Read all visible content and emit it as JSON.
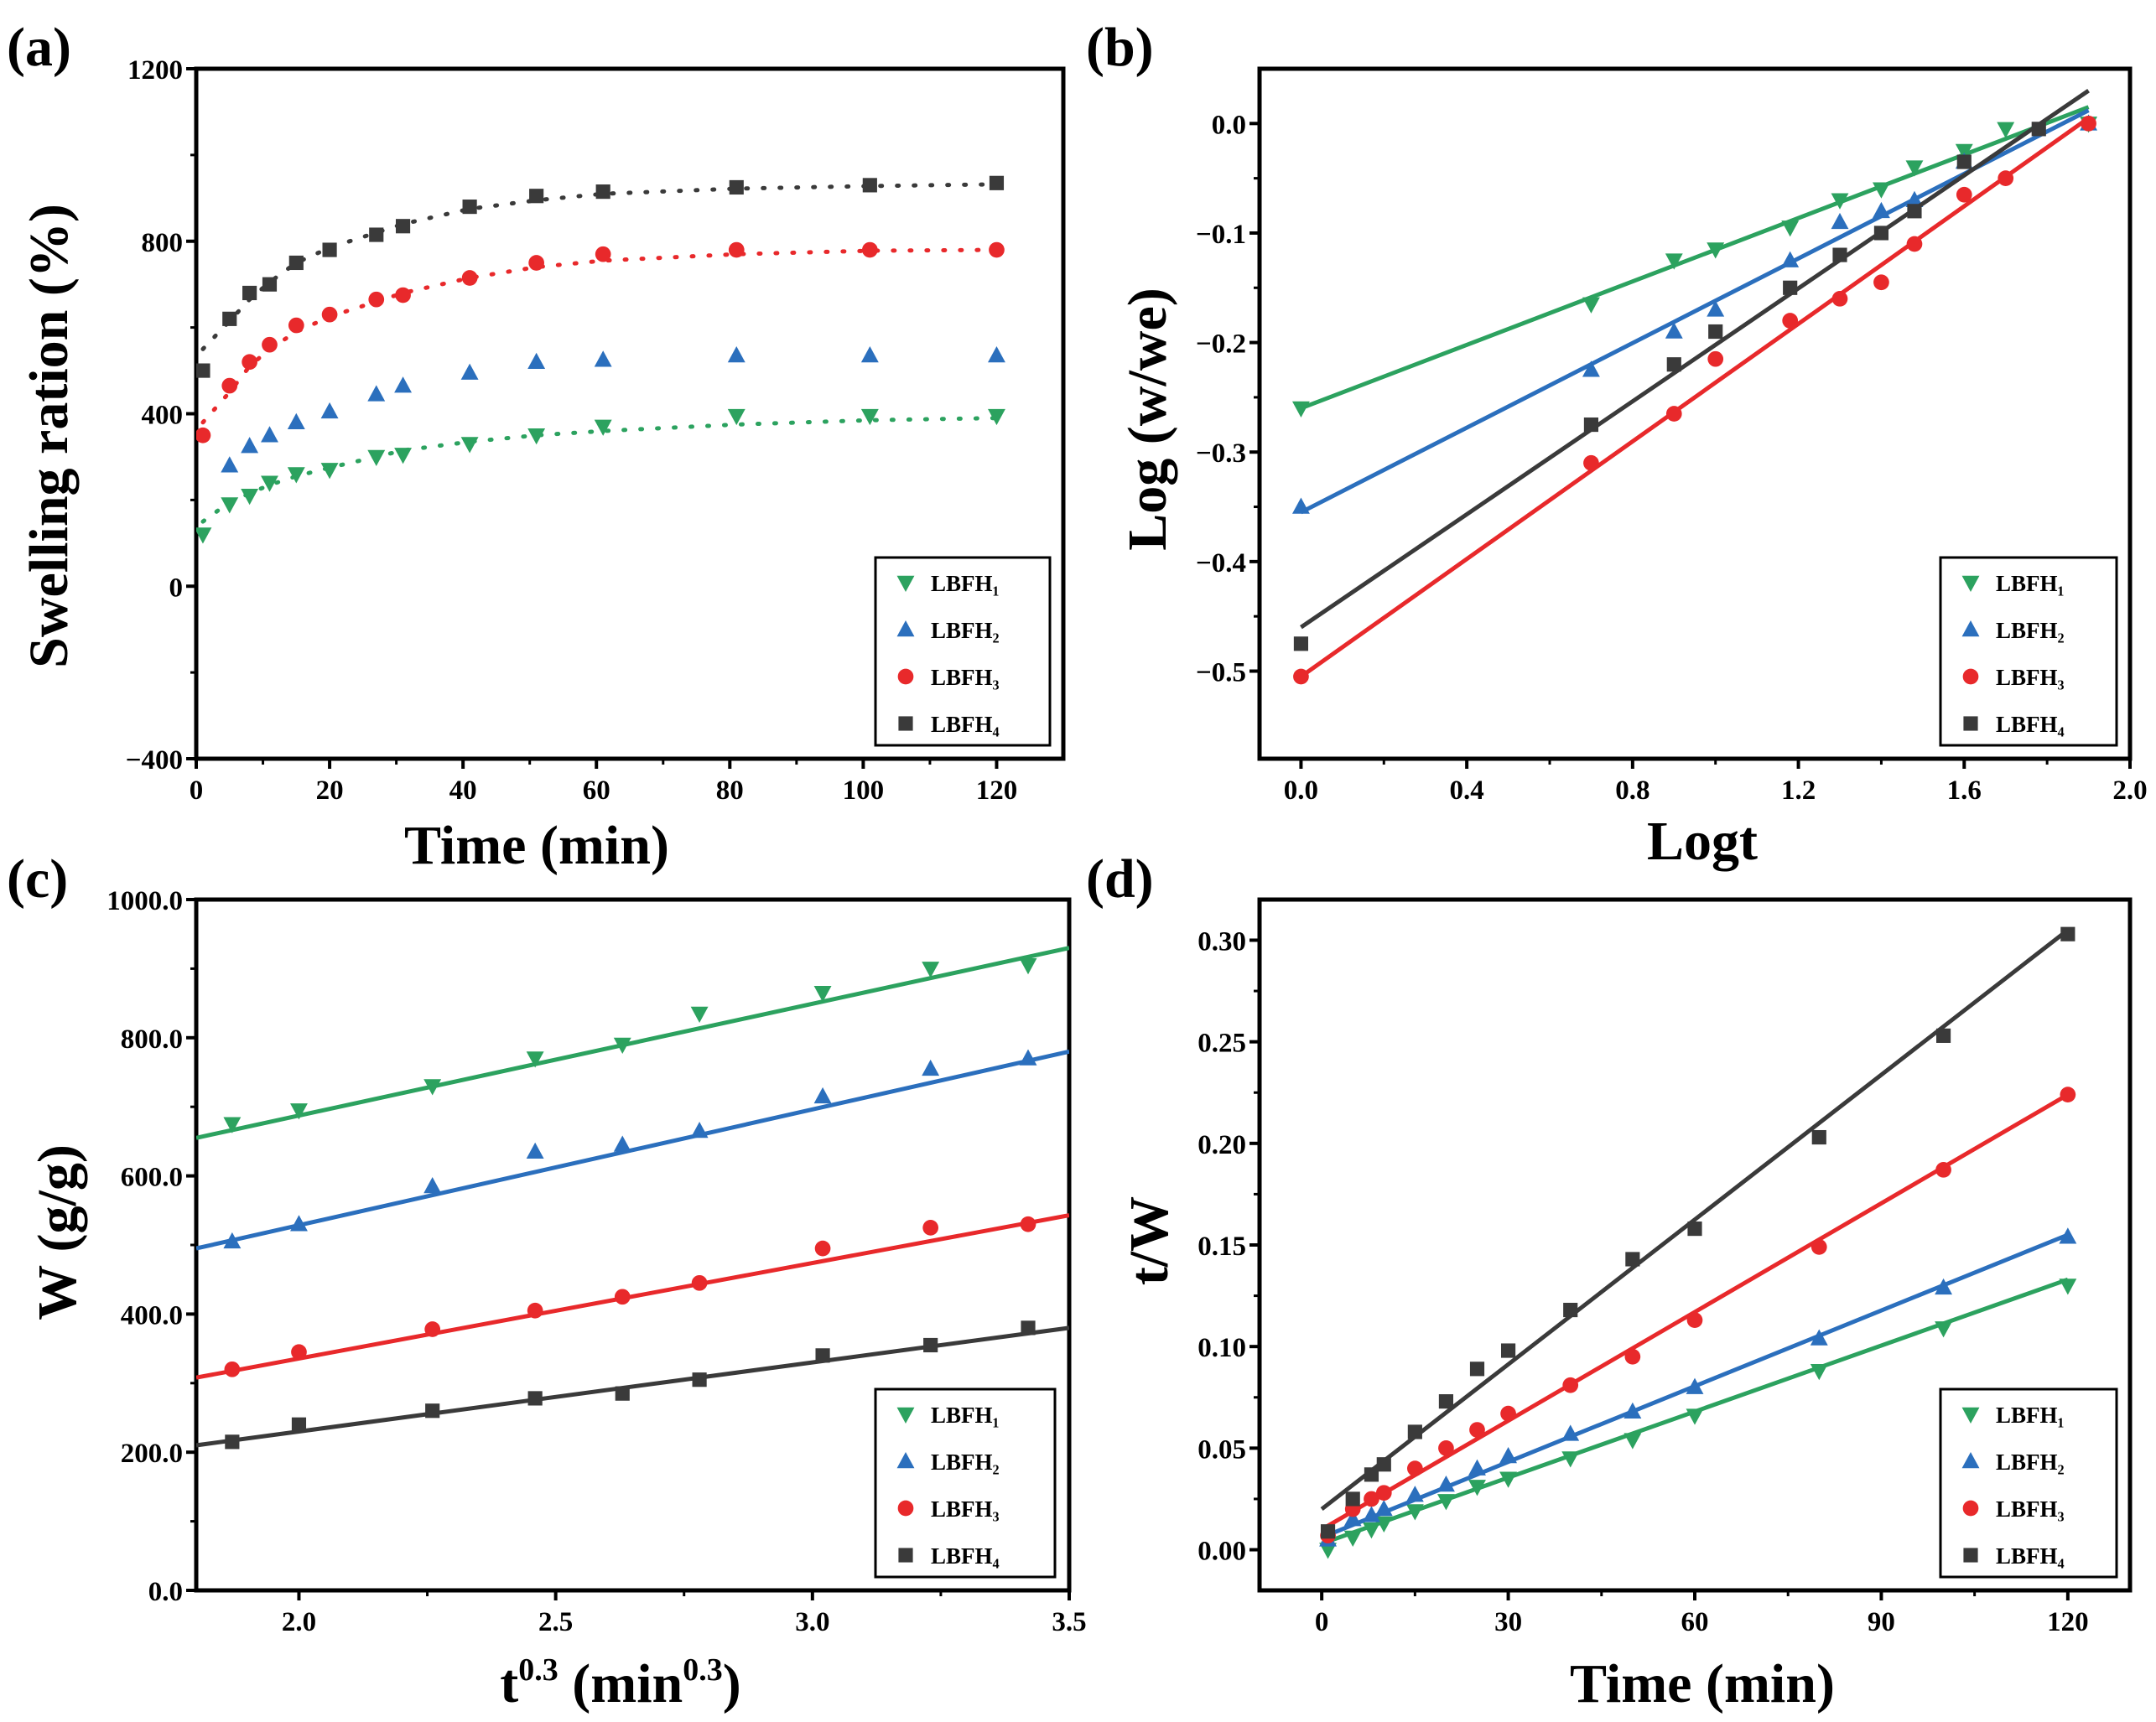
{
  "colors": {
    "LBFH1": "#2ca25f",
    "LBFH2": "#2b6fbd",
    "LBFH3": "#e8292b",
    "LBFH4": "#3a3a3a"
  },
  "chart_data": [
    {
      "panel": "(a)",
      "type": "scatter",
      "xlabel": "Time (min)",
      "ylabel": "Swelling ration (%)",
      "xlim": [
        0,
        130
      ],
      "ylim": [
        -400,
        1200
      ],
      "xticks": [
        0,
        20,
        40,
        60,
        80,
        100,
        120
      ],
      "yticks": [
        -400,
        0,
        400,
        800,
        1200
      ],
      "legend": "bottom-right",
      "fit": "dotted",
      "series": [
        {
          "name": "LBFH1",
          "label": "LBFH₁",
          "marker": "triangle-down",
          "x": [
            1,
            5,
            8,
            11,
            15,
            20,
            27,
            31,
            41,
            51,
            61,
            81,
            101,
            120
          ],
          "y": [
            120,
            190,
            210,
            240,
            260,
            270,
            300,
            305,
            330,
            350,
            370,
            395,
            395,
            395
          ],
          "fit_x": [
            1,
            5,
            8,
            11,
            15,
            20,
            27,
            31,
            41,
            51,
            61,
            81,
            101,
            120
          ],
          "fit_y": [
            150,
            195,
            215,
            235,
            255,
            275,
            300,
            315,
            335,
            350,
            360,
            375,
            385,
            390
          ]
        },
        {
          "name": "LBFH2",
          "label": "LBFH₂",
          "marker": "triangle-up",
          "x": [
            5,
            8,
            11,
            15,
            20,
            27,
            31,
            41,
            51,
            61,
            81,
            101,
            120
          ],
          "y": [
            280,
            325,
            350,
            380,
            405,
            445,
            465,
            495,
            520,
            525,
            535,
            535,
            535
          ],
          "fit_x": [],
          "fit_y": []
        },
        {
          "name": "LBFH3",
          "label": "LBFH₃",
          "marker": "circle",
          "x": [
            1,
            5,
            8,
            11,
            15,
            20,
            27,
            31,
            41,
            51,
            61,
            81,
            101,
            120
          ],
          "y": [
            350,
            465,
            520,
            560,
            605,
            630,
            665,
            675,
            715,
            750,
            770,
            780,
            780,
            780
          ],
          "fit_x": [
            1,
            5,
            8,
            11,
            15,
            20,
            27,
            31,
            41,
            51,
            61,
            81,
            101,
            120
          ],
          "fit_y": [
            380,
            450,
            510,
            550,
            590,
            625,
            660,
            680,
            715,
            740,
            755,
            770,
            778,
            780
          ]
        },
        {
          "name": "LBFH4",
          "label": "LBFH₄",
          "marker": "square",
          "x": [
            1,
            5,
            8,
            11,
            15,
            20,
            27,
            31,
            41,
            51,
            61,
            81,
            101,
            120
          ],
          "y": [
            500,
            620,
            680,
            700,
            750,
            780,
            815,
            835,
            880,
            905,
            915,
            925,
            930,
            935
          ],
          "fit_x": [
            1,
            5,
            8,
            11,
            15,
            20,
            27,
            31,
            41,
            51,
            61,
            81,
            101,
            120
          ],
          "fit_y": [
            550,
            615,
            665,
            705,
            750,
            785,
            820,
            840,
            875,
            895,
            910,
            922,
            928,
            932
          ]
        }
      ]
    },
    {
      "panel": "(b)",
      "type": "scatter",
      "xlabel": "Logt",
      "ylabel": "Log (w/we)",
      "xlim": [
        -0.1,
        2.0
      ],
      "ylim": [
        -0.58,
        0.05
      ],
      "xticks": [
        0.0,
        0.4,
        0.8,
        1.2,
        1.6,
        2.0
      ],
      "yticks": [
        -0.5,
        -0.4,
        -0.3,
        -0.2,
        -0.1,
        0.0
      ],
      "legend": "bottom-right",
      "fit": "solid",
      "series": [
        {
          "name": "LBFH1",
          "label": "LBFH₁",
          "marker": "triangle-down",
          "x": [
            0,
            0.7,
            0.9,
            1.0,
            1.18,
            1.3,
            1.4,
            1.48,
            1.6,
            1.7,
            1.9
          ],
          "y": [
            -0.26,
            -0.165,
            -0.125,
            -0.115,
            -0.095,
            -0.07,
            -0.06,
            -0.04,
            -0.025,
            -0.005,
            0
          ],
          "fit": [
            -0.26,
            0.015
          ]
        },
        {
          "name": "LBFH2",
          "label": "LBFH₂",
          "marker": "triangle-up",
          "x": [
            0,
            0.7,
            0.9,
            1.0,
            1.18,
            1.3,
            1.4,
            1.48,
            1.6,
            1.9
          ],
          "y": [
            -0.35,
            -0.225,
            -0.19,
            -0.17,
            -0.125,
            -0.09,
            -0.08,
            -0.07,
            -0.035,
            0
          ],
          "fit": [
            -0.355,
            0.012
          ]
        },
        {
          "name": "LBFH3",
          "label": "LBFH₃",
          "marker": "circle",
          "x": [
            0,
            0.7,
            0.9,
            1.0,
            1.18,
            1.3,
            1.4,
            1.48,
            1.6,
            1.7,
            1.9
          ],
          "y": [
            -0.505,
            -0.31,
            -0.265,
            -0.215,
            -0.18,
            -0.16,
            -0.145,
            -0.11,
            -0.065,
            -0.05,
            0
          ],
          "fit": [
            -0.505,
            0.005
          ]
        },
        {
          "name": "LBFH4",
          "label": "LBFH₄",
          "marker": "square",
          "x": [
            0,
            0.7,
            0.9,
            1.0,
            1.18,
            1.3,
            1.4,
            1.48,
            1.6,
            1.78
          ],
          "y": [
            -0.475,
            -0.275,
            -0.22,
            -0.19,
            -0.15,
            -0.12,
            -0.1,
            -0.08,
            -0.035,
            -0.005
          ],
          "fit": [
            -0.46,
            0.03
          ]
        }
      ]
    },
    {
      "panel": "(c)",
      "type": "scatter",
      "xlabel": "t0.3 (min0.3)",
      "ylabel": "W (g/g)",
      "xlim": [
        1.8,
        3.5
      ],
      "ylim": [
        0,
        1000
      ],
      "xticks": [
        2.0,
        2.5,
        3.0,
        3.5
      ],
      "yticks": [
        0,
        200,
        400,
        600,
        800,
        1000
      ],
      "legend": "bottom-right",
      "fit": "solid",
      "series": [
        {
          "name": "LBFH1",
          "label": "LBFH₁",
          "marker": "triangle-down",
          "x": [
            1.87,
            2.0,
            2.26,
            2.46,
            2.63,
            2.78,
            3.02,
            3.23,
            3.42
          ],
          "y": [
            675,
            695,
            730,
            770,
            790,
            835,
            865,
            900,
            905
          ],
          "fit": [
            655,
            930
          ]
        },
        {
          "name": "LBFH2",
          "label": "LBFH₂",
          "marker": "triangle-up",
          "x": [
            1.87,
            2.0,
            2.26,
            2.46,
            2.63,
            2.78,
            3.02,
            3.23,
            3.42
          ],
          "y": [
            505,
            530,
            585,
            635,
            645,
            665,
            715,
            755,
            770
          ],
          "fit": [
            495,
            780
          ]
        },
        {
          "name": "LBFH3",
          "label": "LBFH₃",
          "marker": "circle",
          "x": [
            1.87,
            2.0,
            2.26,
            2.46,
            2.63,
            2.78,
            3.02,
            3.23,
            3.42
          ],
          "y": [
            320,
            345,
            378,
            405,
            425,
            445,
            495,
            525,
            530
          ],
          "fit": [
            308,
            543
          ]
        },
        {
          "name": "LBFH4",
          "label": "LBFH₄",
          "marker": "square",
          "x": [
            1.87,
            2.0,
            2.26,
            2.46,
            2.63,
            2.78,
            3.02,
            3.23,
            3.42
          ],
          "y": [
            215,
            240,
            260,
            278,
            285,
            305,
            340,
            355,
            380
          ],
          "fit": [
            210,
            380
          ]
        }
      ]
    },
    {
      "panel": "(d)",
      "type": "scatter",
      "xlabel": "Time (min)",
      "ylabel": "t/W",
      "xlim": [
        -10,
        130
      ],
      "ylim": [
        -0.02,
        0.32
      ],
      "xticks": [
        0,
        30,
        60,
        90,
        120
      ],
      "yticks": [
        0.0,
        0.05,
        0.1,
        0.15,
        0.2,
        0.25,
        0.3
      ],
      "legend": "bottom-right",
      "fit": "solid",
      "series": [
        {
          "name": "LBFH1",
          "label": "LBFH₁",
          "marker": "triangle-down",
          "x": [
            1,
            5,
            8,
            10,
            15,
            20,
            25,
            30,
            40,
            50,
            60,
            80,
            100,
            120
          ],
          "y": [
            0.0,
            0.006,
            0.01,
            0.013,
            0.019,
            0.024,
            0.031,
            0.035,
            0.045,
            0.054,
            0.066,
            0.088,
            0.109,
            0.13
          ],
          "fit": [
            0.003,
            0.133
          ]
        },
        {
          "name": "LBFH2",
          "label": "LBFH₂",
          "marker": "triangle-up",
          "x": [
            1,
            5,
            8,
            10,
            15,
            20,
            25,
            30,
            40,
            50,
            60,
            80,
            100,
            120
          ],
          "y": [
            0.005,
            0.015,
            0.017,
            0.02,
            0.027,
            0.032,
            0.04,
            0.046,
            0.057,
            0.068,
            0.08,
            0.104,
            0.129,
            0.154
          ],
          "fit": [
            0.006,
            0.155
          ]
        },
        {
          "name": "LBFH3",
          "label": "LBFH₃",
          "marker": "circle",
          "x": [
            1,
            5,
            8,
            10,
            15,
            20,
            25,
            30,
            40,
            50,
            60,
            80,
            100,
            120
          ],
          "y": [
            0.007,
            0.02,
            0.025,
            0.028,
            0.04,
            0.05,
            0.059,
            0.067,
            0.081,
            0.095,
            0.113,
            0.149,
            0.187,
            0.224
          ],
          "fit": [
            0.01,
            0.224
          ]
        },
        {
          "name": "LBFH4",
          "label": "LBFH₄",
          "marker": "square",
          "x": [
            1,
            5,
            8,
            10,
            15,
            20,
            25,
            30,
            40,
            50,
            60,
            80,
            100,
            120
          ],
          "y": [
            0.009,
            0.025,
            0.037,
            0.042,
            0.058,
            0.073,
            0.089,
            0.098,
            0.118,
            0.143,
            0.158,
            0.203,
            0.253,
            0.303
          ],
          "fit": [
            0.02,
            0.305
          ]
        }
      ]
    }
  ]
}
